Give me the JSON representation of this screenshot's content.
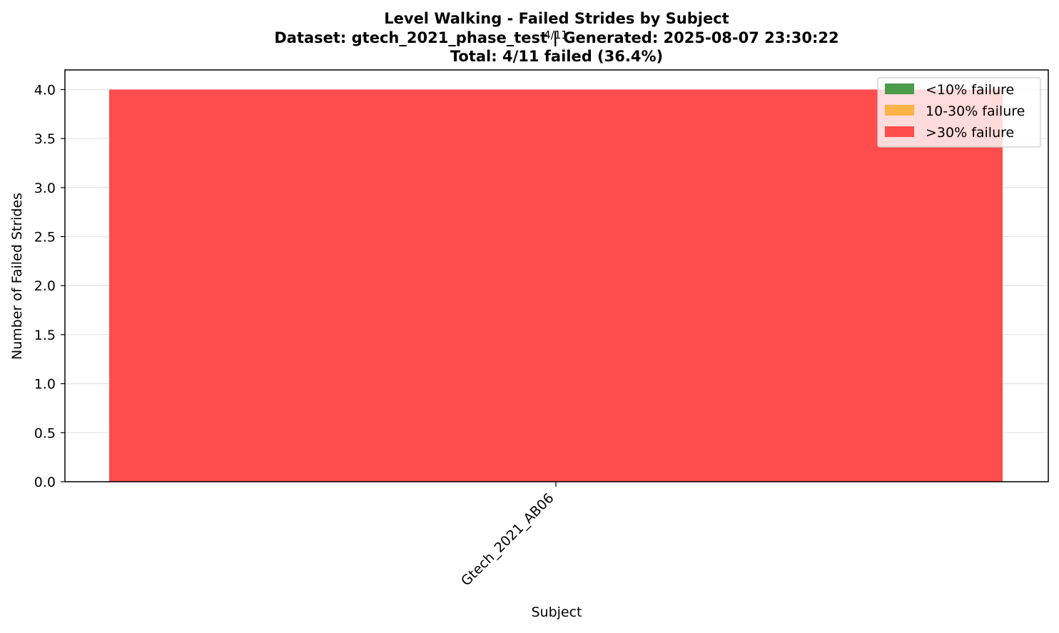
{
  "chart_data": {
    "type": "bar",
    "title_lines": [
      "Level Walking - Failed Strides by Subject",
      "Dataset: gtech_2021_phase_test | Generated: 2025-08-07 23:30:22",
      "Total: 4/11 failed (36.4%)"
    ],
    "categories": [
      "Gtech_2021_AB06"
    ],
    "values": [
      4
    ],
    "bar_colors": [
      "#ff4c4c"
    ],
    "annotations": [
      "4/11"
    ],
    "xlabel": "Subject",
    "ylabel": "Number of Failed Strides",
    "ylim": [
      0,
      4.2
    ],
    "yticks": [
      0.0,
      0.5,
      1.0,
      1.5,
      2.0,
      2.5,
      3.0,
      3.5,
      4.0
    ],
    "ytick_labels": [
      "0.0",
      "0.5",
      "1.0",
      "1.5",
      "2.0",
      "2.5",
      "3.0",
      "3.5",
      "4.0"
    ],
    "grid": "y",
    "legend_position": "top-right",
    "legend": [
      {
        "label": "<10% failure",
        "color": "#4c9a4c"
      },
      {
        "label": "10-30% failure",
        "color": "#ffb347"
      },
      {
        "label": ">30% failure",
        "color": "#ff4c4c"
      }
    ]
  }
}
